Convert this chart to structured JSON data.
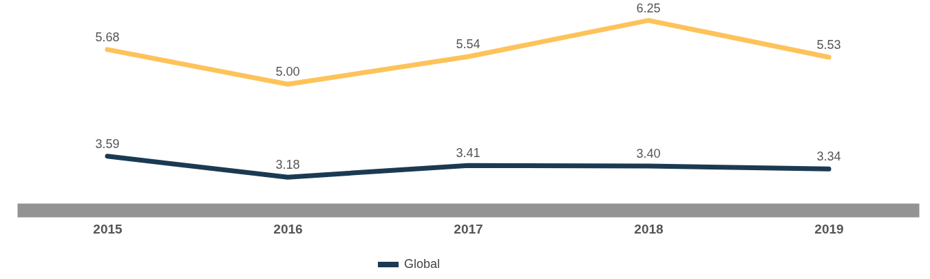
{
  "chart_data": {
    "type": "line",
    "categories": [
      "2015",
      "2016",
      "2017",
      "2018",
      "2019"
    ],
    "series": [
      {
        "color": "#fdc35a",
        "values": [
          5.68,
          5.0,
          5.54,
          6.25,
          5.53
        ],
        "value_labels": [
          "5.68",
          "5.00",
          "5.54",
          "6.25",
          "5.53"
        ]
      },
      {
        "name": "Global",
        "color": "#1b3a52",
        "values": [
          3.59,
          3.18,
          3.41,
          3.4,
          3.34
        ],
        "value_labels": [
          "3.59",
          "3.18",
          "3.41",
          "3.40",
          "3.34"
        ]
      }
    ],
    "legend": "bottom",
    "marker": "none",
    "line_style": "solid",
    "grid": false
  }
}
